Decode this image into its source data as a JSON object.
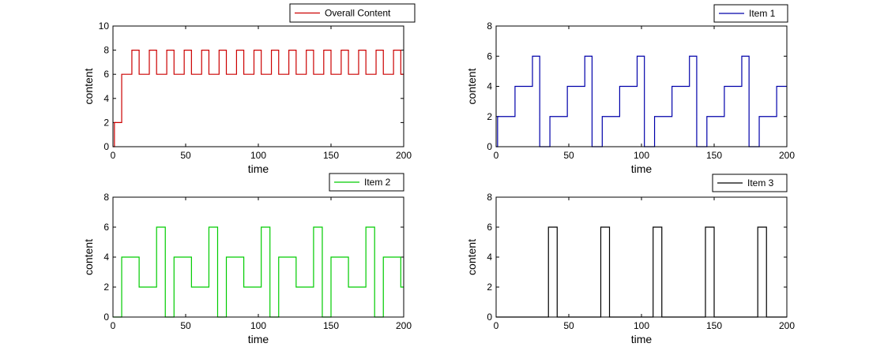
{
  "chart_data": [
    {
      "type": "line",
      "step": true,
      "title": "",
      "xlabel": "time",
      "ylabel": "content",
      "xlim": [
        0,
        200
      ],
      "ylim": [
        0,
        10
      ],
      "xticks": [
        0,
        50,
        100,
        150,
        200
      ],
      "yticks": [
        0,
        2,
        4,
        6,
        8,
        10
      ],
      "legend": "top-right-outside",
      "series": [
        {
          "name": "Overall Content",
          "color": "#cc0000",
          "x": [
            0,
            1,
            6,
            13,
            18,
            25,
            30,
            37,
            42,
            49,
            54,
            61,
            66,
            73,
            78,
            85,
            90,
            97,
            102,
            109,
            114,
            121,
            126,
            133,
            138,
            145,
            150,
            157,
            162,
            169,
            174,
            181,
            186,
            193,
            198,
            200
          ],
          "y": [
            0,
            2,
            6,
            8,
            6,
            8,
            6,
            8,
            6,
            8,
            6,
            8,
            6,
            8,
            6,
            8,
            6,
            8,
            6,
            8,
            6,
            8,
            6,
            8,
            6,
            8,
            6,
            8,
            6,
            8,
            6,
            8,
            6,
            8,
            6,
            6
          ]
        }
      ]
    },
    {
      "type": "line",
      "step": true,
      "title": "",
      "xlabel": "time",
      "ylabel": "content",
      "xlim": [
        0,
        200
      ],
      "ylim": [
        0,
        8
      ],
      "xticks": [
        0,
        50,
        100,
        150,
        200
      ],
      "yticks": [
        0,
        2,
        4,
        6,
        8
      ],
      "legend": "top-right-outside",
      "series": [
        {
          "name": "Item 1",
          "color": "#0000aa",
          "x": [
            0,
            1,
            13,
            25,
            30,
            37,
            49,
            61,
            66,
            73,
            85,
            97,
            102,
            109,
            121,
            133,
            138,
            145,
            157,
            169,
            174,
            181,
            193,
            200
          ],
          "y": [
            0,
            2,
            4,
            6,
            0,
            2,
            4,
            6,
            0,
            2,
            4,
            6,
            0,
            2,
            4,
            6,
            0,
            2,
            4,
            6,
            0,
            2,
            4,
            4
          ]
        }
      ]
    },
    {
      "type": "line",
      "step": true,
      "title": "",
      "xlabel": "time",
      "ylabel": "content",
      "xlim": [
        0,
        200
      ],
      "ylim": [
        0,
        8
      ],
      "xticks": [
        0,
        50,
        100,
        150,
        200
      ],
      "yticks": [
        0,
        2,
        4,
        6,
        8
      ],
      "legend": "top-right-outside",
      "series": [
        {
          "name": "Item 2",
          "color": "#00cc00",
          "x": [
            0,
            6,
            18,
            30,
            36,
            42,
            54,
            66,
            72,
            78,
            90,
            102,
            108,
            114,
            126,
            138,
            144,
            150,
            162,
            174,
            180,
            186,
            198,
            200
          ],
          "y": [
            0,
            4,
            2,
            6,
            0,
            4,
            2,
            6,
            0,
            4,
            2,
            6,
            0,
            4,
            2,
            6,
            0,
            4,
            2,
            6,
            0,
            4,
            2,
            2
          ]
        }
      ]
    },
    {
      "type": "line",
      "step": true,
      "title": "",
      "xlabel": "time",
      "ylabel": "content",
      "xlim": [
        0,
        200
      ],
      "ylim": [
        0,
        8
      ],
      "xticks": [
        0,
        50,
        100,
        150,
        200
      ],
      "yticks": [
        0,
        2,
        4,
        6,
        8
      ],
      "legend": "top-right-outside",
      "series": [
        {
          "name": "Item 3",
          "color": "#000000",
          "x": [
            0,
            36,
            42,
            72,
            78,
            108,
            114,
            144,
            150,
            180,
            186,
            200
          ],
          "y": [
            0,
            6,
            0,
            6,
            0,
            6,
            0,
            6,
            0,
            6,
            0,
            0
          ]
        }
      ]
    }
  ]
}
